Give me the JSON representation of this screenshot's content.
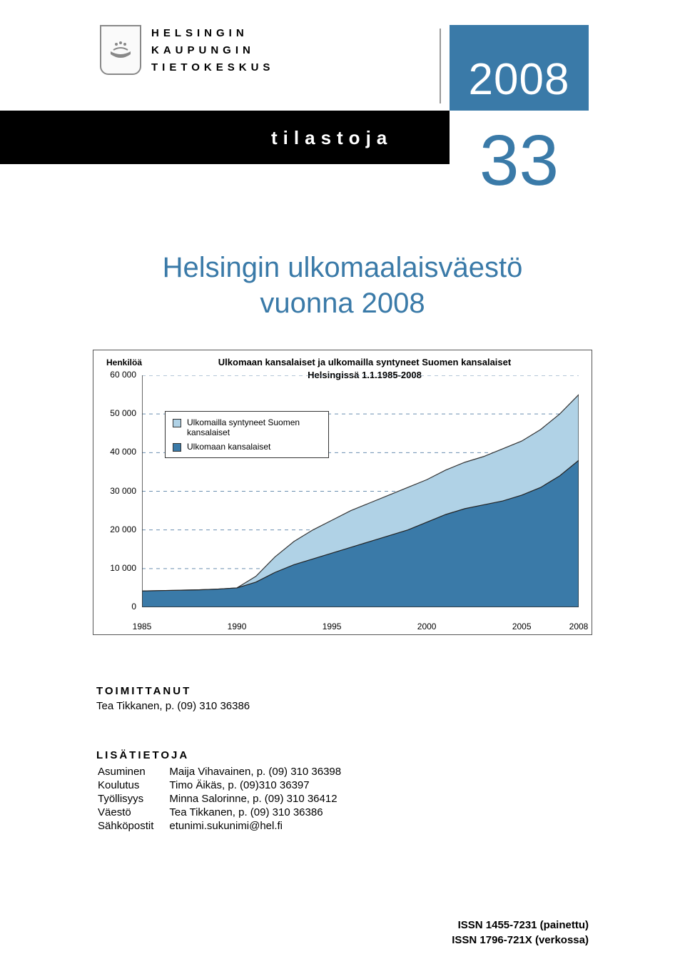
{
  "header": {
    "org_line1": "HELSINGIN",
    "org_line2": "KAUPUNGIN",
    "org_line3": "TIETOKESKUS",
    "year": "2008",
    "series": "tilastoja",
    "issue": "33"
  },
  "title_line1": "Helsingin ulkomaalaisväestö",
  "title_line2": "vuonna 2008",
  "chart": {
    "type": "stacked-area",
    "y_axis_label": "Henkilöä",
    "title_line1": "Ulkomaan kansalaiset ja ulkomailla syntyneet Suomen kansalaiset",
    "title_line2": "Helsingissä 1.1.1985-2008",
    "ylim": [
      0,
      60000
    ],
    "ytick_step": 10000,
    "yticks": [
      "0",
      "10 000",
      "20 000",
      "30 000",
      "40 000",
      "50 000",
      "60 000"
    ],
    "xticks": [
      "1985",
      "1990",
      "1995",
      "2000",
      "2005",
      "2008"
    ],
    "xtick_years": [
      1985,
      1990,
      1995,
      2000,
      2005,
      2008
    ],
    "x_range": [
      1985,
      2008
    ],
    "legend": [
      {
        "label": "Ulkomailla syntyneet Suomen kansalaiset",
        "color": "#b0d2e6"
      },
      {
        "label": "Ulkomaan kansalaiset",
        "color": "#3a7aa8"
      }
    ],
    "colors": {
      "series_light": "#b0d2e6",
      "series_dark": "#3a7aa8",
      "grid": "#6a8fb0",
      "border": "#333333",
      "background": "#ffffff"
    },
    "series_dark_values": {
      "1985": 4200,
      "1986": 4300,
      "1987": 4400,
      "1988": 4500,
      "1989": 4700,
      "1990": 5000,
      "1991": 6500,
      "1992": 9000,
      "1993": 11000,
      "1994": 12500,
      "1995": 14000,
      "1996": 15500,
      "1997": 17000,
      "1998": 18500,
      "1999": 20000,
      "2000": 22000,
      "2001": 24000,
      "2002": 25500,
      "2003": 26500,
      "2004": 27500,
      "2005": 29000,
      "2006": 31000,
      "2007": 34000,
      "2008": 38000
    },
    "series_total_values": {
      "1985": 4200,
      "1986": 4300,
      "1987": 4400,
      "1988": 4500,
      "1989": 4700,
      "1990": 5000,
      "1991": 8000,
      "1992": 13000,
      "1993": 17000,
      "1994": 20000,
      "1995": 22500,
      "1996": 25000,
      "1997": 27000,
      "1998": 29000,
      "1999": 31000,
      "2000": 33000,
      "2001": 35500,
      "2002": 37500,
      "2003": 39000,
      "2004": 41000,
      "2005": 43000,
      "2006": 46000,
      "2007": 50000,
      "2008": 55000
    }
  },
  "editor": {
    "heading": "TOIMITTANUT",
    "name_phone": "Tea Tikkanen, p. (09) 310 36386"
  },
  "moreinfo": {
    "heading": "LISÄTIETOJA",
    "rows": [
      {
        "topic": "Asuminen",
        "contact": "Maija Vihavainen, p. (09) 310 36398"
      },
      {
        "topic": "Koulutus",
        "contact": "Timo Äikäs, p. (09)310 36397"
      },
      {
        "topic": "Työllisyys",
        "contact": "Minna Salorinne, p. (09) 310 36412"
      },
      {
        "topic": "Väestö",
        "contact": "Tea Tikkanen, p. (09) 310 36386"
      },
      {
        "topic": "Sähköpostit",
        "contact": "etunimi.sukunimi@hel.fi"
      }
    ]
  },
  "issn": {
    "print": "ISSN 1455-7231 (painettu)",
    "online": "ISSN 1796-721X (verkossa)"
  }
}
